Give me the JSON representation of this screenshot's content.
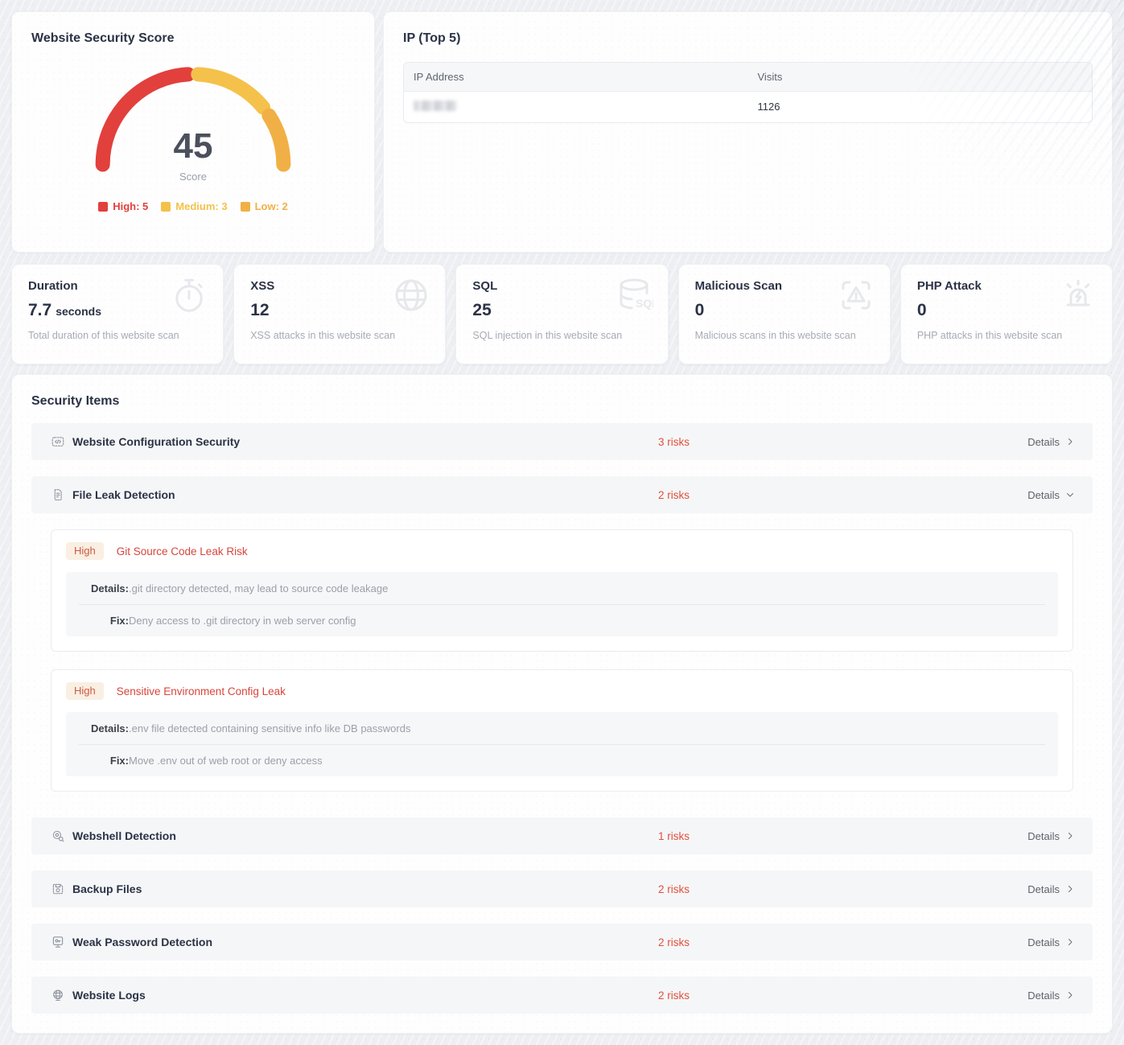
{
  "score_card": {
    "title": "Website Security Score",
    "score": "45",
    "score_label": "Score",
    "gauge": {
      "high": 5,
      "medium": 3,
      "low": 2
    },
    "legend": [
      {
        "label": "High: 5",
        "color": "#e2403c"
      },
      {
        "label": "Medium: 3",
        "color": "#f4c14b"
      },
      {
        "label": "Low: 2",
        "color": "#f1b045"
      }
    ]
  },
  "ip_card": {
    "title": "IP (Top 5)",
    "columns": {
      "ip": "IP Address",
      "visits": "Visits"
    },
    "rows": [
      {
        "ip_redacted": true,
        "visits": "1126"
      }
    ]
  },
  "stat_cards": [
    {
      "title": "Duration",
      "value": "7.7",
      "unit": "seconds",
      "description": "Total duration of this website scan",
      "icon": "stopwatch-icon"
    },
    {
      "title": "XSS",
      "value": "12",
      "description": "XSS attacks in this website scan",
      "icon": "globe-icon"
    },
    {
      "title": "SQL",
      "value": "25",
      "description": "SQL injection in this website scan",
      "icon": "database-sql-icon",
      "icon_label": "SQL"
    },
    {
      "title": "Malicious Scan",
      "value": "0",
      "description": "Malicious scans in this website scan",
      "icon": "scan-warning-icon"
    },
    {
      "title": "PHP Attack",
      "value": "0",
      "description": "PHP attacks in this website scan",
      "icon": "siren-icon"
    }
  ],
  "security_items": {
    "title": "Security Items",
    "details_label": "Details",
    "items": [
      {
        "label": "Website Configuration Security",
        "risks": "3 risks",
        "expanded": false
      },
      {
        "label": "File Leak Detection",
        "risks": "2 risks",
        "expanded": true
      },
      {
        "label": "Webshell Detection",
        "risks": "1 risks",
        "expanded": false
      },
      {
        "label": "Backup Files",
        "risks": "2 risks",
        "expanded": false
      },
      {
        "label": "Weak Password Detection",
        "risks": "2 risks",
        "expanded": false
      },
      {
        "label": "Website Logs",
        "risks": "2 risks",
        "expanded": false
      }
    ],
    "expanded_risks": [
      {
        "severity": "High",
        "title": "Git Source Code Leak Risk",
        "details_label": "Details:",
        "details": ".git directory detected, may lead to source code leakage",
        "fix_label": "Fix:",
        "fix": "Deny access to .git directory in web server config"
      },
      {
        "severity": "High",
        "title": "Sensitive Environment Config Leak",
        "details_label": "Details:",
        "details": ".env file detected containing sensitive info like DB passwords",
        "fix_label": "Fix:",
        "fix": "Move .env out of web root or deny access"
      }
    ]
  },
  "colors": {
    "risk_text": "#e2503c",
    "badge_bg": "#f9efe3",
    "badge_text": "#cf5a43"
  }
}
